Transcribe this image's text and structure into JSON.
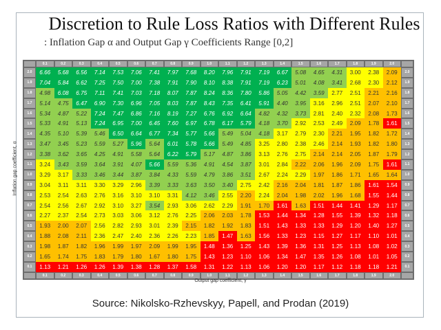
{
  "chart_data": {
    "type": "heatmap",
    "title": "Discretion to Rule Loss Ratios with Different Rules",
    "subtitle": ":  Inflation Gap α and Output Gap γ Coefficients Range [0,2]",
    "xlabel": "Output gap coefficient, γ",
    "ylabel": "Inflation gap coefficient, α",
    "x_ticks": [
      "0.1",
      "0.2",
      "0.3",
      "0.4",
      "0.5",
      "0.6",
      "0.7",
      "0.8",
      "0.9",
      "1.0",
      "1.1",
      "1.2",
      "1.3",
      "1.4",
      "1.5",
      "1.6",
      "1.7",
      "1.8",
      "1.9",
      "2.0"
    ],
    "y_ticks": [
      "2.0",
      "1.9",
      "1.8",
      "1.7",
      "1.6",
      "1.5",
      "1.4",
      "1.3",
      "1.2",
      "1.1",
      "1.0",
      "0.9",
      "0.8",
      "0.7",
      "0.6",
      "0.5",
      "0.4",
      "0.3",
      "0.2",
      "0.1"
    ],
    "values": [
      [
        "6.66",
        "5.68",
        "6.56",
        "7.14",
        "7.53",
        "7.06",
        "7.41",
        "7.97",
        "7.68",
        "8.20",
        "7.96",
        "7.91",
        "7.19",
        "6.67",
        "5.08",
        "4.65",
        "4.31",
        "3.00",
        "2.38",
        "2.09"
      ],
      [
        "7.04",
        "5.84",
        "6.62",
        "7.25",
        "7.50",
        "7.00",
        "7.38",
        "7.91",
        "7.90",
        "8.10",
        "8.38",
        "7.91",
        "7.19",
        "6.23",
        "5.01",
        "4.08",
        "3.41",
        "2.68",
        "2.30",
        "2.12"
      ],
      [
        "4.98",
        "6.08",
        "6.75",
        "7.11",
        "7.41",
        "7.03",
        "7.18",
        "8.07",
        "7.87",
        "8.24",
        "8.36",
        "7.80",
        "5.86",
        "5.05",
        "4.42",
        "3.59",
        "2.77",
        "2.51",
        "2.21",
        "2.16"
      ],
      [
        "5.14",
        "4.75",
        "6.47",
        "6.90",
        "7.30",
        "6.96",
        "7.05",
        "8.03",
        "7.87",
        "8.43",
        "7.35",
        "6.41",
        "5.91",
        "4.40",
        "3.95",
        "3.16",
        "2.96",
        "2.51",
        "2.07",
        "2.10"
      ],
      [
        "5.34",
        "4.87",
        "5.22",
        "7.24",
        "7.47",
        "6.86",
        "7.16",
        "8.19",
        "7.27",
        "6.76",
        "6.92",
        "6.64",
        "4.82",
        "4.32",
        "3.73",
        "2.81",
        "2.40",
        "2.32",
        "2.08",
        "1.73"
      ],
      [
        "5.33",
        "4.91",
        "5.13",
        "7.24",
        "6.95",
        "7.00",
        "6.45",
        "7.60",
        "6.97",
        "6.78",
        "6.17",
        "5.79",
        "4.18",
        "3.70",
        "2.92",
        "2.53",
        "2.49",
        "2.09",
        "1.78",
        "1.61"
      ],
      [
        "4.35",
        "5.10",
        "5.39",
        "5.46",
        "6.50",
        "6.64",
        "6.77",
        "7.34",
        "5.77",
        "5.66",
        "5.49",
        "5.04",
        "4.18",
        "3.17",
        "2.79",
        "2.30",
        "2.21",
        "1.95",
        "1.82",
        "1.72"
      ],
      [
        "3.47",
        "3.45",
        "5.23",
        "5.59",
        "5.27",
        "5.96",
        "5.64",
        "6.01",
        "5.78",
        "5.66",
        "5.49",
        "4.85",
        "3.25",
        "2.80",
        "2.38",
        "2.46",
        "2.14",
        "1.93",
        "1.82",
        "1.80"
      ],
      [
        "3.38",
        "3.62",
        "3.65",
        "4.25",
        "4.91",
        "5.58",
        "5.64",
        "6.22",
        "5.79",
        "5.17",
        "4.87",
        "3.86",
        "3.13",
        "2.76",
        "2.75",
        "2.14",
        "2.14",
        "2.05",
        "1.87",
        "1.79"
      ],
      [
        "3.24",
        "3.43",
        "3.59",
        "3.64",
        "3.91",
        "4.07",
        "5.66",
        "5.59",
        "5.36",
        "4.91",
        "4.54",
        "3.87",
        "3.01",
        "2.84",
        "2.22",
        "2.06",
        "1.96",
        "2.09",
        "1.75",
        "1.61"
      ],
      [
        "3.29",
        "3.17",
        "3.33",
        "3.46",
        "3.44",
        "3.87",
        "3.84",
        "4.33",
        "5.59",
        "4.79",
        "3.86",
        "3.51",
        "2.67",
        "2.24",
        "2.29",
        "1.97",
        "1.86",
        "1.71",
        "1.65",
        "1.64"
      ],
      [
        "3.04",
        "3.11",
        "3.11",
        "3.30",
        "3.29",
        "2.96",
        "3.39",
        "3.33",
        "3.63",
        "3.50",
        "3.40",
        "2.75",
        "2.42",
        "2.16",
        "2.04",
        "1.81",
        "1.87",
        "1.86",
        "1.61",
        "1.54"
      ],
      [
        "2.53",
        "2.54",
        "2.63",
        "2.76",
        "3.16",
        "3.10",
        "3.10",
        "3.31",
        "4.12",
        "3.46",
        "2.55",
        "2.20",
        "2.24",
        "2.04",
        "1.98",
        "2.02",
        "1.96",
        "1.68",
        "1.55",
        "1.44"
      ],
      [
        "2.54",
        "2.56",
        "2.67",
        "2.92",
        "3.10",
        "3.27",
        "3.54",
        "2.93",
        "3.06",
        "2.62",
        "2.29",
        "1.91",
        "1.70",
        "1.61",
        "1.63",
        "1.51",
        "1.44",
        "1.41",
        "1.29",
        "1.17"
      ],
      [
        "2.27",
        "2.37",
        "2.54",
        "2.73",
        "3.03",
        "3.06",
        "3.12",
        "2.76",
        "2.25",
        "2.06",
        "2.03",
        "1.78",
        "1.53",
        "1.44",
        "1.34",
        "1.28",
        "1.55",
        "1.39",
        "1.32",
        "1.18"
      ],
      [
        "1.93",
        "2.00",
        "2.07",
        "2.56",
        "2.82",
        "2.93",
        "3.01",
        "2.39",
        "2.15",
        "1.82",
        "1.92",
        "1.83",
        "1.51",
        "1.43",
        "1.33",
        "1.33",
        "1.29",
        "1.20",
        "1.40",
        "1.27"
      ],
      [
        "1.88",
        "2.08",
        "2.11",
        "2.36",
        "2.47",
        "2.40",
        "2.36",
        "2.26",
        "2.23",
        "1.85",
        "1.47",
        "1.63",
        "1.56",
        "1.33",
        "1.23",
        "1.15",
        "1.27",
        "1.17",
        "1.10",
        "1.01"
      ],
      [
        "1.98",
        "1.87",
        "1.82",
        "1.96",
        "1.99",
        "1.97",
        "2.09",
        "1.99",
        "1.95",
        "1.48",
        "1.36",
        "1.25",
        "1.43",
        "1.39",
        "1.36",
        "1.31",
        "1.25",
        "1.13",
        "1.08",
        "1.02"
      ],
      [
        "1.65",
        "1.74",
        "1.75",
        "1.83",
        "1.79",
        "1.80",
        "1.67",
        "1.80",
        "1.75",
        "1.43",
        "1.23",
        "1.10",
        "1.06",
        "1.34",
        "1.47",
        "1.35",
        "1.26",
        "1.08",
        "1.01",
        "1.05"
      ],
      [
        "1.13",
        "1.21",
        "1.26",
        "1.26",
        "1.39",
        "1.38",
        "1.28",
        "1.37",
        "1.58",
        "1.31",
        "1.22",
        "1.13",
        "1.06",
        "1.20",
        "1.20",
        "1.17",
        "1.12",
        "1.18",
        "1.18",
        "1.21"
      ]
    ],
    "color_scale": [
      {
        "min": 5.65,
        "color": "#00b050"
      },
      {
        "min": 3.32,
        "color": "#92d050"
      },
      {
        "min": 2.23,
        "color": "#ffff00"
      },
      {
        "min": 1.62,
        "color": "#ffc000"
      },
      {
        "min": 0,
        "color": "#ff0000"
      }
    ]
  },
  "source": "Source: Nikolsko-Rzhevskyy, Papell, and Prodan (2019)"
}
